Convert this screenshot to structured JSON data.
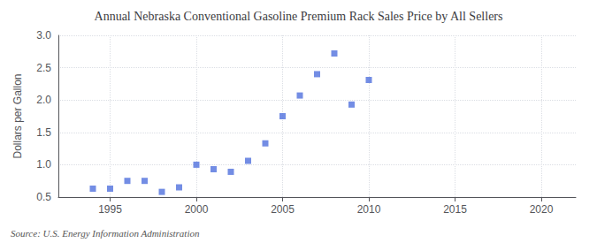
{
  "chart_data": {
    "type": "scatter",
    "title": "Annual Nebraska Conventional Gasoline Premium Rack Sales Price by All Sellers",
    "ylabel": "Dollars per Gallon",
    "annotations": [
      "Source: U.S. Energy Information Administration"
    ],
    "x": [
      1994,
      1995,
      1996,
      1997,
      1998,
      1999,
      2000,
      2001,
      2002,
      2003,
      2004,
      2005,
      2006,
      2007,
      2008,
      2009,
      2010
    ],
    "values": [
      0.63,
      0.63,
      0.75,
      0.75,
      0.58,
      0.65,
      1.0,
      0.93,
      0.89,
      1.06,
      1.33,
      1.75,
      2.07,
      2.4,
      2.72,
      1.93,
      2.31
    ],
    "marker": "square",
    "xlim": [
      1992,
      2022
    ],
    "xticks": [
      1995,
      2000,
      2005,
      2010,
      2015,
      2020
    ],
    "ylim": [
      0.5,
      3.0
    ],
    "yticks": [
      0.5,
      {
        "value": 1.0,
        "label": "1.0"
      },
      1.5,
      {
        "value": 2.0,
        "label": "2.0"
      },
      2.5,
      {
        "value": 3.0,
        "label": "3.0"
      }
    ],
    "grid": true
  }
}
